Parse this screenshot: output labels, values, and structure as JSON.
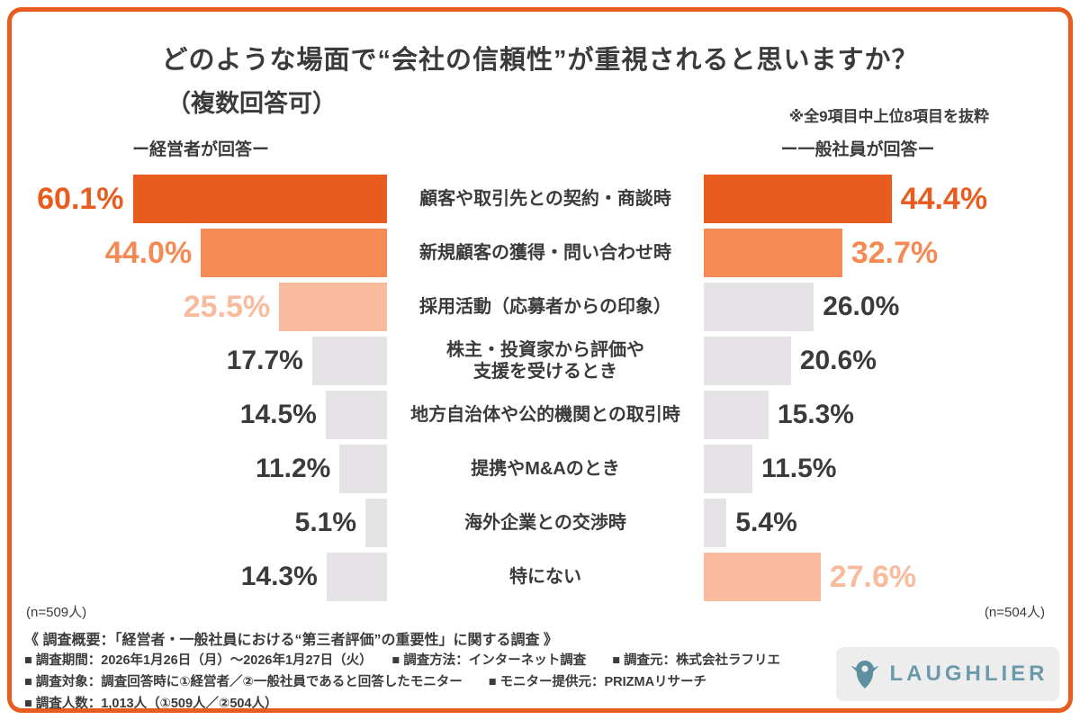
{
  "page": {
    "title": "どのような場面で“会社の信頼性”が重視されると思いますか？",
    "subtitle": "（複数回答可）",
    "note": "※全9項目中上位8項目を抜粋",
    "left_header": "ー経営者が回答ー",
    "right_header": "ー一般社員が回答ー",
    "left_n": "(n=509人)",
    "right_n": "(n=504人)"
  },
  "colors": {
    "accent_dark": "#e85d1f",
    "accent_mid": "#f58a55",
    "accent_light": "#f9bb9e",
    "bar_gray": "#e5e2e5",
    "text_dark": "#3b3b3b",
    "frame_orange": "#e85d1f",
    "logo_teal": "#6b9aab",
    "logo_bg": "#ededed"
  },
  "chart_data": {
    "type": "bar",
    "layout": "horizontal-butterfly",
    "title": "どのような場面で“会社の信頼性”が重視されると思いますか？（複数回答可）",
    "categories": [
      "顧客や取引先との契約・商談時",
      "新規顧客の獲得・問い合わせ時",
      "採用活動（応募者からの印象）",
      "株主・投資家から評価や\n支援を受けるとき",
      "地方自治体や公的機関との取引時",
      "提携やM&Aのとき",
      "海外企業との交渉時",
      "特にない"
    ],
    "xlim": [
      0,
      65
    ],
    "series": [
      {
        "name": "経営者が回答",
        "n": 509,
        "values": [
          60.1,
          44.0,
          25.5,
          17.7,
          14.5,
          11.2,
          5.1,
          14.3
        ],
        "value_labels": [
          "60.1%",
          "44.0%",
          "25.5%",
          "17.7%",
          "14.5%",
          "11.2%",
          "5.1%",
          "14.3%"
        ],
        "bar_colors": [
          "#e85d1f",
          "#f58a55",
          "#f9bb9e",
          "#e5e2e5",
          "#e5e2e5",
          "#e5e2e5",
          "#e5e2e5",
          "#e5e2e5"
        ],
        "label_colors": [
          "#e85d1f",
          "#f58a55",
          "#f9bb9e",
          "#3b3b3b",
          "#3b3b3b",
          "#3b3b3b",
          "#3b3b3b",
          "#3b3b3b"
        ]
      },
      {
        "name": "一般社員が回答",
        "n": 504,
        "values": [
          44.4,
          32.7,
          26.0,
          20.6,
          15.3,
          11.5,
          5.4,
          27.6
        ],
        "value_labels": [
          "44.4%",
          "32.7%",
          "26.0%",
          "20.6%",
          "15.3%",
          "11.5%",
          "5.4%",
          "27.6%"
        ],
        "bar_colors": [
          "#e85d1f",
          "#f58a55",
          "#e5e2e5",
          "#e5e2e5",
          "#e5e2e5",
          "#e5e2e5",
          "#e5e2e5",
          "#f9bb9e"
        ],
        "label_colors": [
          "#e85d1f",
          "#f58a55",
          "#3b3b3b",
          "#3b3b3b",
          "#3b3b3b",
          "#3b3b3b",
          "#3b3b3b",
          "#f9bb9e"
        ]
      }
    ]
  },
  "footer": {
    "heading": "《 調査概要：「経営者・一般社員における“第三者評価”の重要性」に関する調査 》",
    "lines": [
      "■ 調査期間：2026年1月26日（月）〜2026年1月27日（火）　　■ 調査方法：インターネット調査　　■ 調査元：株式会社ラフリエ",
      "■ 調査対象：調査回答時に①経営者／②一般社員であると回答したモニター　　■ モニター提供元：PRIZMAリサーチ",
      "■ 調査人数：1,013人（①509人／②504人）"
    ]
  },
  "logo": {
    "text": "LAUGHLIER",
    "icon": "bird-icon"
  }
}
